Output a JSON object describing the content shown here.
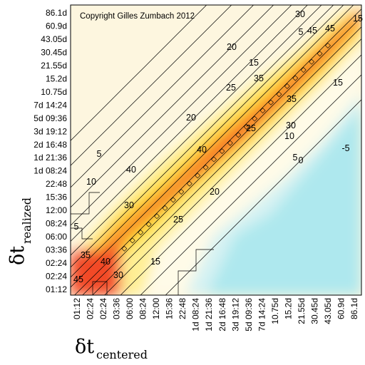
{
  "chart_data": {
    "type": "heatmap",
    "title": "",
    "copyright": "Copyright Gilles Zumbach 2012",
    "xlabel": {
      "symbol": "δt",
      "subscript": "centered"
    },
    "ylabel": {
      "symbol": "δt",
      "subscript": "realized"
    },
    "x_ticks": [
      "01:12",
      "02:24",
      "02:24",
      "03:36",
      "06:00",
      "08:24",
      "12:00",
      "15:36",
      "22:48",
      "1d 08:24",
      "1d 21:36",
      "2d 16:48",
      "3d 19:12",
      "5d 09:36",
      "7d 14:24",
      "10.75d",
      "15.2d",
      "21.55d",
      "30.45d",
      "43.05d",
      "60.9d",
      "86.1d"
    ],
    "y_ticks": [
      "01:12",
      "02:24",
      "02:24",
      "03:36",
      "06:00",
      "08:24",
      "12:00",
      "15:36",
      "22:48",
      "1d 08:24",
      "1d 21:36",
      "2d 16:48",
      "3d 19:12",
      "5d 09:36",
      "7d 14:24",
      "10.75d",
      "15.2d",
      "21.55d",
      "30.45d",
      "43.05d",
      "60.9d",
      "86.1d"
    ],
    "contour_levels": [
      -5,
      0,
      5,
      10,
      15,
      20,
      25,
      30,
      35,
      40,
      45
    ],
    "contour_labels": [
      "45",
      "35",
      "40",
      "30",
      "15",
      "5",
      "10",
      "5",
      "30",
      "25",
      "40",
      "20",
      "25",
      "20",
      "5",
      "40",
      "35",
      "20",
      "15",
      "25",
      "35",
      "30",
      "10",
      "5",
      "0",
      "-5",
      "15",
      "30",
      "45",
      "45",
      "15"
    ],
    "colorscale": [
      "#aee8ee",
      "#d5f2f3",
      "#fdfaf1",
      "#fff3c2",
      "#ffea6a",
      "#ffd21c",
      "#ffb226",
      "#ff8a2e",
      "#f2552a"
    ],
    "grid": false,
    "legend": "none"
  }
}
